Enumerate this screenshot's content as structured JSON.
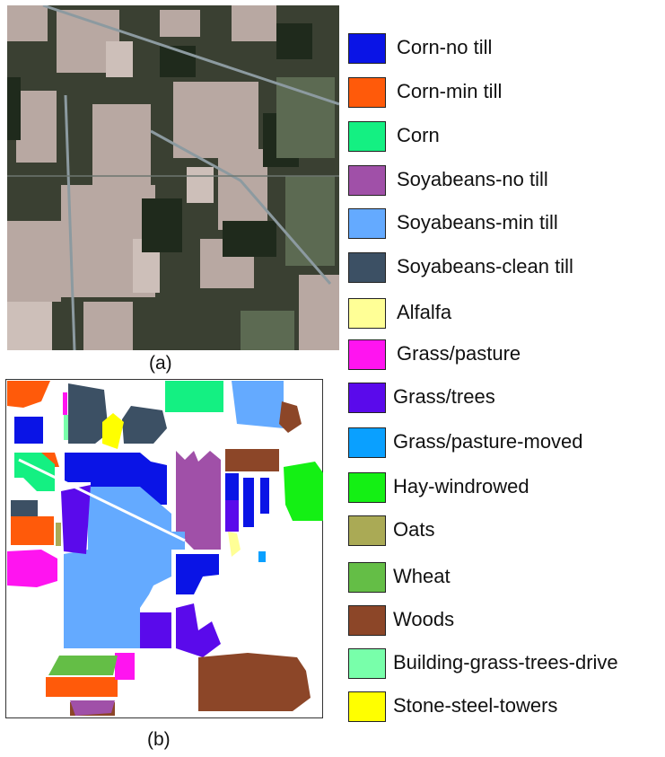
{
  "panels": {
    "a": {
      "caption": "(a)"
    },
    "b": {
      "caption": "(b)"
    }
  },
  "legend": [
    {
      "label": "Corn-no till",
      "color": "#0a14e6"
    },
    {
      "label": "Corn-min till",
      "color": "#ff5a0a"
    },
    {
      "label": "Corn",
      "color": "#14f082"
    },
    {
      "label": "Soyabeans-no till",
      "color": "#a050a8"
    },
    {
      "label": "Soyabeans-min till",
      "color": "#64aaff"
    },
    {
      "label": "Soyabeans-clean till",
      "color": "#3c5064"
    },
    {
      "label": "Alfalfa",
      "color": "#ffff96"
    },
    {
      "label": "Grass/pasture",
      "color": "#ff14f0"
    },
    {
      "label": "Grass/trees",
      "color": "#5a0aeb"
    },
    {
      "label": "Grass/pasture-moved",
      "color": "#0aa0ff"
    },
    {
      "label": "Hay-windrowed",
      "color": "#14f014"
    },
    {
      "label": "Oats",
      "color": "#aaaa55"
    },
    {
      "label": "Wheat",
      "color": "#64be46"
    },
    {
      "label": "Woods",
      "color": "#8c4628"
    },
    {
      "label": "Building-grass-trees-drive",
      "color": "#78ffaa"
    },
    {
      "label": "Stone-steel-towers",
      "color": "#ffff00"
    }
  ]
}
